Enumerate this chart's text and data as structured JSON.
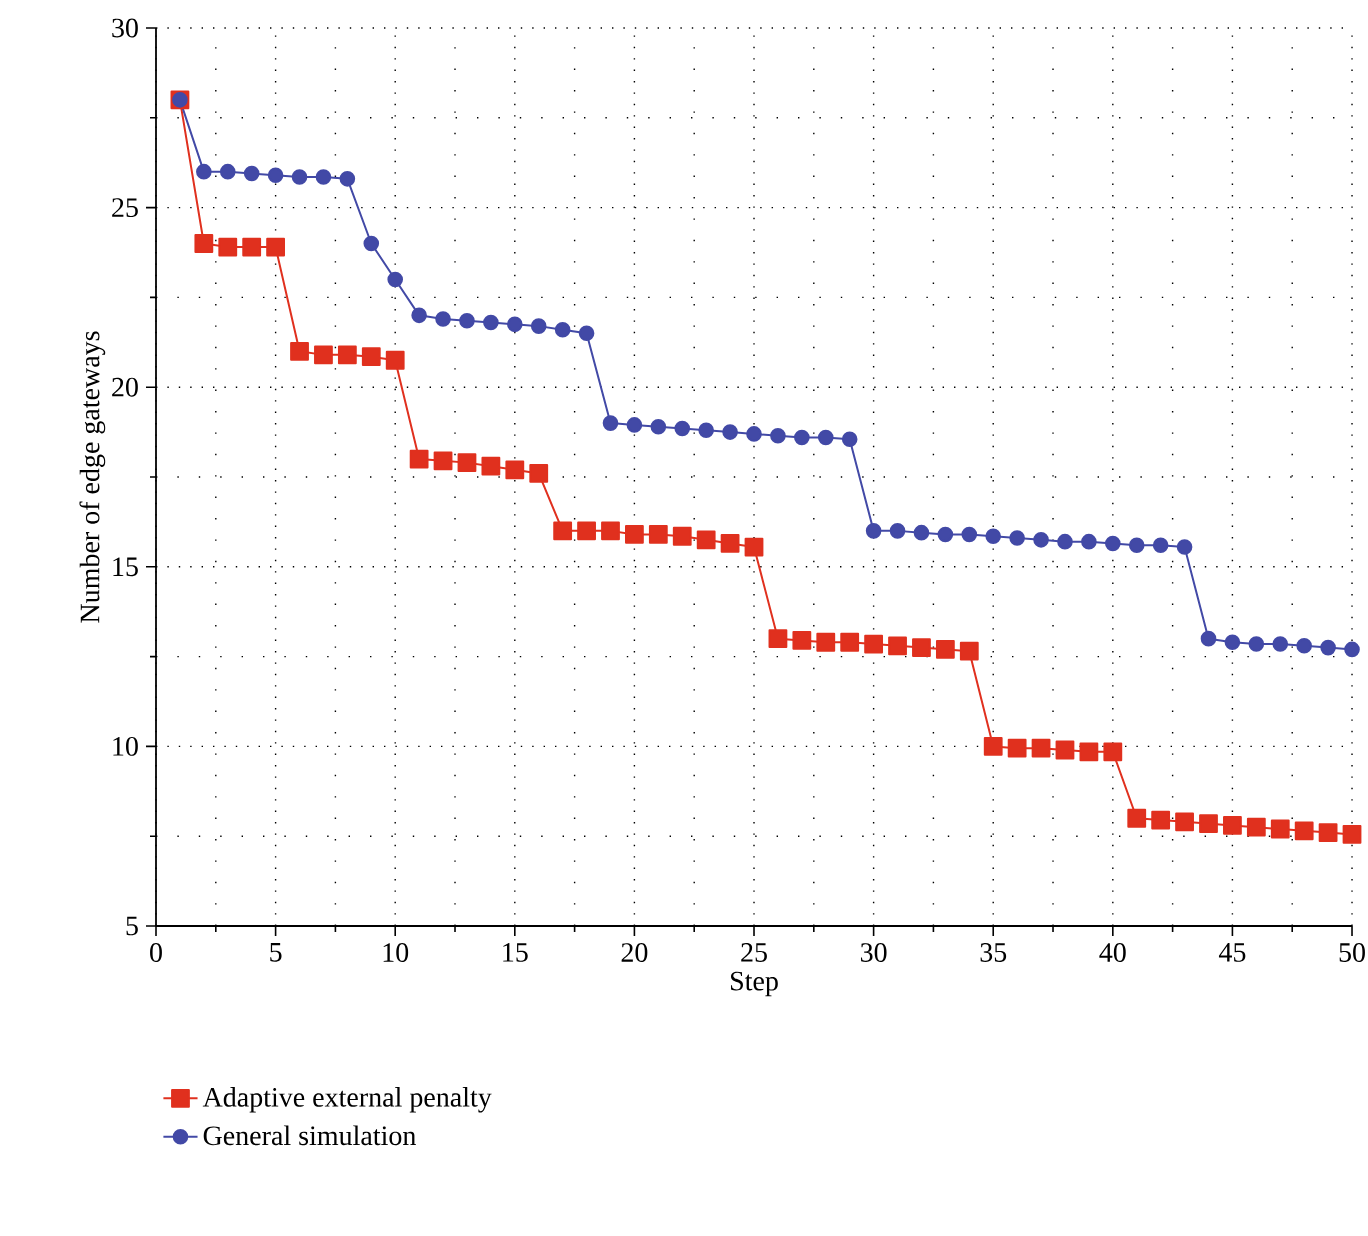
{
  "chart_data": {
    "type": "line",
    "xlabel": "Step",
    "ylabel": "Number of edge gateways",
    "x": [
      1,
      2,
      3,
      4,
      5,
      6,
      7,
      8,
      9,
      10,
      11,
      12,
      13,
      14,
      15,
      16,
      17,
      18,
      19,
      20,
      21,
      22,
      23,
      24,
      25,
      26,
      27,
      28,
      29,
      30,
      31,
      32,
      33,
      34,
      35,
      36,
      37,
      38,
      39,
      40,
      41,
      42,
      43,
      44,
      45,
      46,
      47,
      48,
      49,
      50
    ],
    "series": [
      {
        "name": "Adaptive external penalty",
        "color": "#e0301e",
        "marker": "square",
        "values": [
          28,
          24,
          23.9,
          23.9,
          23.9,
          21,
          20.9,
          20.9,
          20.85,
          20.75,
          18,
          17.95,
          17.9,
          17.8,
          17.7,
          17.6,
          16,
          16,
          16,
          15.9,
          15.9,
          15.85,
          15.75,
          15.65,
          15.55,
          13,
          12.95,
          12.9,
          12.9,
          12.85,
          12.8,
          12.75,
          12.7,
          12.65,
          10,
          9.95,
          9.95,
          9.9,
          9.85,
          9.85,
          8,
          7.95,
          7.9,
          7.85,
          7.8,
          7.75,
          7.7,
          7.65,
          7.6,
          7.55
        ]
      },
      {
        "name": "General simulation",
        "color": "#4249a6",
        "marker": "circle",
        "values": [
          28,
          26,
          26,
          25.95,
          25.9,
          25.85,
          25.85,
          25.8,
          24,
          23,
          22,
          21.9,
          21.85,
          21.8,
          21.75,
          21.7,
          21.6,
          21.5,
          19,
          18.95,
          18.9,
          18.85,
          18.8,
          18.75,
          18.7,
          18.65,
          18.6,
          18.6,
          18.55,
          16,
          16,
          15.95,
          15.9,
          15.9,
          15.85,
          15.8,
          15.75,
          15.7,
          15.7,
          15.65,
          15.6,
          15.6,
          15.55,
          13,
          12.9,
          12.85,
          12.85,
          12.8,
          12.75,
          12.7
        ]
      }
    ],
    "xlim": [
      0,
      50
    ],
    "xticks": [
      0,
      5,
      10,
      15,
      20,
      25,
      30,
      35,
      40,
      45,
      50
    ],
    "ylim": [
      5,
      30
    ],
    "yticks": [
      5,
      10,
      15,
      20,
      25,
      30
    ],
    "grid": true,
    "legend": "bottom",
    "line_style": "solid"
  }
}
